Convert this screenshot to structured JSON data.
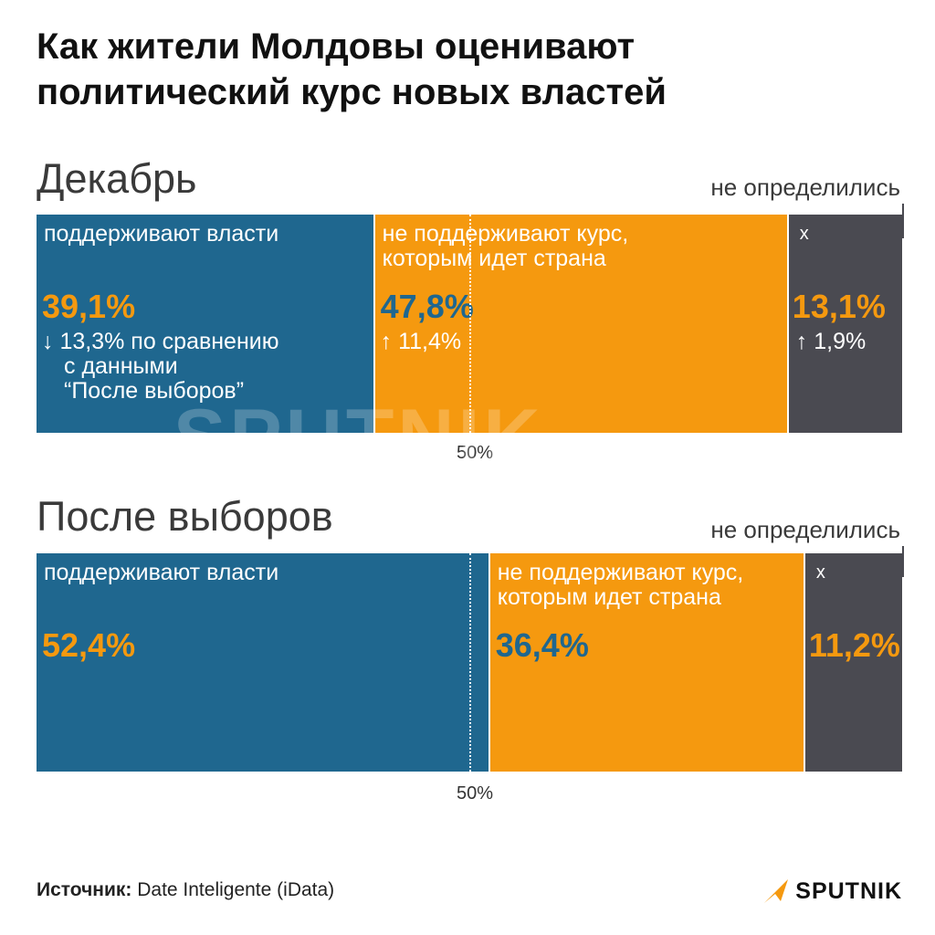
{
  "title": {
    "line1": "Как жители Молдовы оценивают",
    "line2": "политический курс новых властей"
  },
  "colors": {
    "support": "#1f678f",
    "oppose": "#f5990f",
    "undecided": "#4a4a51",
    "value_on_blue": "#f5990f",
    "value_on_orange": "#1f678f",
    "value_on_gray": "#f5990f"
  },
  "chart_data": {
    "type": "bar",
    "orientation": "horizontal-stacked",
    "reference_line": {
      "value": 50,
      "label": "50%"
    },
    "series_labels": {
      "support": "поддерживают власти",
      "oppose_line1": "не поддерживают курс,",
      "oppose_line2": "которым идет страна",
      "undecided": "не определились",
      "undecided_marker": "x"
    },
    "bars": [
      {
        "label": "Декабрь",
        "support": 39.1,
        "support_text": "39,1%",
        "support_change_line1": "↓ 13,3% по сравнению",
        "support_change_line2": "с данными",
        "support_change_line3": "“После выборов”",
        "oppose": 47.8,
        "oppose_text": "47,8%",
        "oppose_change": "↑ 11,4%",
        "undecided": 13.1,
        "undecided_text": "13,1%",
        "undecided_change": "↑ 1,9%"
      },
      {
        "label": "После выборов",
        "support": 52.4,
        "support_text": "52,4%",
        "oppose": 36.4,
        "oppose_text": "36,4%",
        "undecided": 11.2,
        "undecided_text": "11,2%"
      }
    ]
  },
  "watermark": "SPUTNIK",
  "footer": {
    "source_label": "Источник:",
    "source_value": "Date Inteligente (iData)",
    "logo_text": "SPUTNIK",
    "logo_icon": "sputnik-arrow-icon"
  }
}
